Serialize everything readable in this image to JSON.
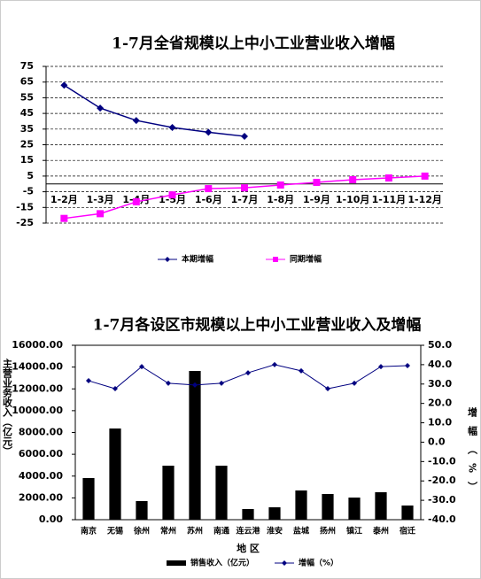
{
  "chart_data": [
    {
      "type": "line",
      "title": "1-7月全省规模以上中小工业营业收入增幅",
      "categories": [
        "1-2月",
        "1-3月",
        "1-4月",
        "1-5月",
        "1-6月",
        "1-7月",
        "1-8月",
        "1-9月",
        "1-10月",
        "1-11月",
        "1-12月"
      ],
      "series": [
        {
          "name": "本期增幅",
          "color": "#000080",
          "marker": "diamond",
          "values": [
            63,
            48.4,
            40.5,
            36,
            33,
            30.4,
            null,
            null,
            null,
            null,
            null
          ]
        },
        {
          "name": "同期增幅",
          "color": "#ff00ff",
          "marker": "square",
          "values": [
            -22,
            -19,
            -11.4,
            -7,
            -3,
            -2.5,
            -0.7,
            1,
            2.7,
            3.8,
            5
          ]
        }
      ],
      "ylim": [
        -25,
        75
      ],
      "yticks": [
        -25,
        -15,
        -5,
        5,
        15,
        25,
        35,
        45,
        55,
        65,
        75
      ],
      "grid": true,
      "legend": "bottom"
    },
    {
      "type": "bar",
      "title": "1-7月各设区市规模以上中小工业营业收入及增幅",
      "xlabel": "地 区",
      "ylabel": "主营业务收入（亿元）",
      "y2label": "增幅（%）",
      "categories": [
        "南京",
        "无锡",
        "徐州",
        "常州",
        "苏州",
        "南通",
        "连云港",
        "淮安",
        "盐城",
        "扬州",
        "镇江",
        "泰州",
        "宿迁"
      ],
      "series": [
        {
          "name": "销售收入（亿元）",
          "color": "#000000",
          "type": "bar",
          "values": [
            3817,
            8365,
            1706,
            4954,
            13645,
            4954,
            975,
            1137,
            2680,
            2355,
            2030,
            2518,
            1300
          ]
        },
        {
          "name": "增幅（%）",
          "color": "#000080",
          "type": "line",
          "marker": "diamond",
          "axis": "y2",
          "values": [
            31.7,
            27.6,
            39,
            30.4,
            29.5,
            30.4,
            35.8,
            40,
            36.8,
            27.6,
            30.4,
            39,
            39.5
          ]
        }
      ],
      "ylim": [
        0,
        16000
      ],
      "yticks": [
        {
          "value": 0,
          "label": "0.00"
        },
        {
          "value": 2000,
          "label": "2000.00"
        },
        {
          "value": 4000,
          "label": "4000.00"
        },
        {
          "value": 6000,
          "label": "6000.00"
        },
        {
          "value": 8000,
          "label": "8000.00"
        },
        {
          "value": 10000,
          "label": "10000.00"
        },
        {
          "value": 12000,
          "label": "12000.00"
        },
        {
          "value": 14000,
          "label": "14000.00"
        },
        {
          "value": 16000,
          "label": "16000.00"
        }
      ],
      "y2lim": [
        -40,
        50
      ],
      "y2ticks": [
        {
          "value": -40,
          "label": "-40.0"
        },
        {
          "value": -30,
          "label": "-30.0"
        },
        {
          "value": -20,
          "label": "-20.0"
        },
        {
          "value": -10,
          "label": "-10.0"
        },
        {
          "value": 0,
          "label": "0.0"
        },
        {
          "value": 10,
          "label": "10.0"
        },
        {
          "value": 20,
          "label": "20.0"
        },
        {
          "value": 30,
          "label": "30.0"
        },
        {
          "value": 40,
          "label": "40.0"
        },
        {
          "value": 50,
          "label": "50.0"
        }
      ],
      "grid": false,
      "legend": "bottom"
    }
  ]
}
